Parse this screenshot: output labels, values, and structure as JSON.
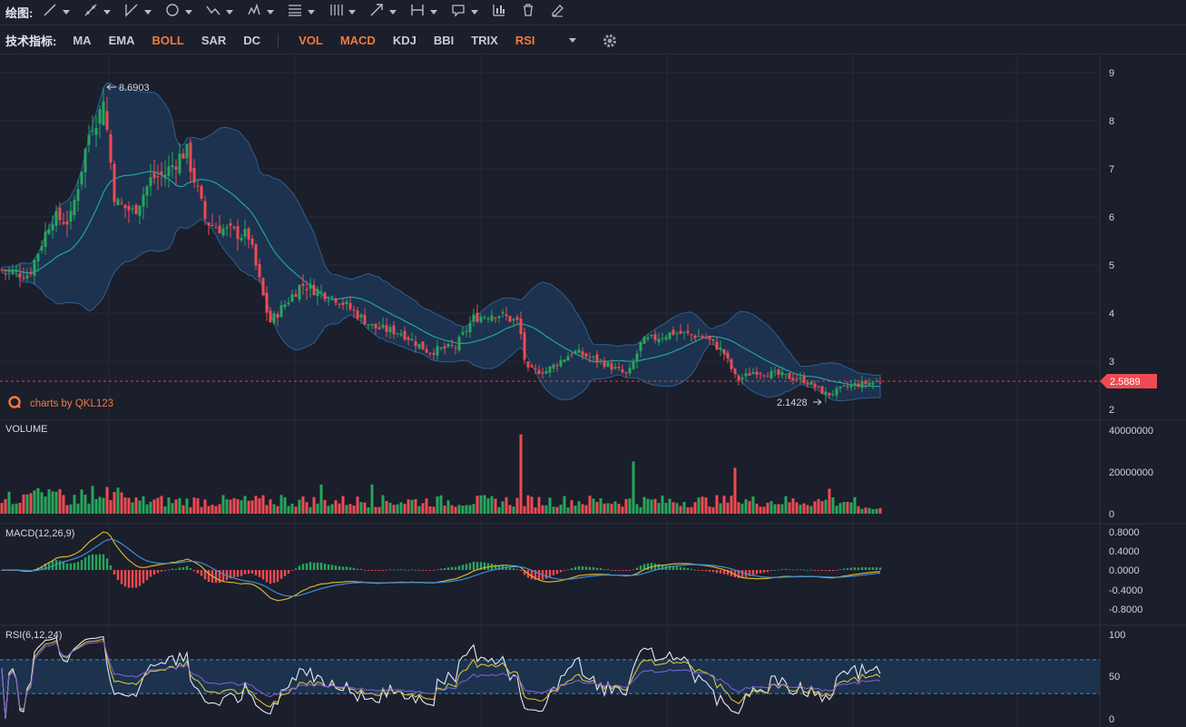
{
  "toolbar": {
    "draw_label": "绘图:",
    "tools": [
      {
        "name": "line-tool-icon",
        "dropdown": true
      },
      {
        "name": "ray-tool-icon",
        "dropdown": true
      },
      {
        "name": "channel-tool-icon",
        "dropdown": true
      },
      {
        "name": "circle-tool-icon",
        "dropdown": true
      },
      {
        "name": "wave-tool-icon",
        "dropdown": true
      },
      {
        "name": "pattern-tool-icon",
        "dropdown": true
      },
      {
        "name": "fibonacci-tool-icon",
        "dropdown": true
      },
      {
        "name": "gann-tool-icon",
        "dropdown": true
      },
      {
        "name": "arrow-tool-icon",
        "dropdown": true
      },
      {
        "name": "measure-tool-icon",
        "dropdown": true
      },
      {
        "name": "comment-tool-icon",
        "dropdown": true
      },
      {
        "name": "chart-type-icon",
        "dropdown": false
      },
      {
        "name": "trash-icon",
        "dropdown": false
      },
      {
        "name": "eraser-icon",
        "dropdown": false
      }
    ]
  },
  "indicators": {
    "label": "技术指标:",
    "main": [
      {
        "label": "MA",
        "active": false
      },
      {
        "label": "EMA",
        "active": false
      },
      {
        "label": "BOLL",
        "active": true
      },
      {
        "label": "SAR",
        "active": false
      },
      {
        "label": "DC",
        "active": false
      }
    ],
    "sub": [
      {
        "label": "VOL",
        "active": true
      },
      {
        "label": "MACD",
        "active": true
      },
      {
        "label": "KDJ",
        "active": false
      },
      {
        "label": "BBI",
        "active": false
      },
      {
        "label": "TRIX",
        "active": false
      },
      {
        "label": "RSI",
        "active": true
      }
    ]
  },
  "colors": {
    "up": "#26a65b",
    "down": "#ef4a52",
    "accent": "#f07b3f",
    "band_fill": "#1d3a5c",
    "band_edge": "#2f5f8e",
    "mid_line": "#1fa5a0",
    "macd_diff": "#d4b430",
    "macd_dea": "#3a8fd6",
    "rsi1": "#e8e8f0",
    "rsi2": "#d9c23a",
    "rsi3": "#7b5fd3"
  },
  "price": {
    "current": "2.5889",
    "high_label": "8.6903",
    "low_label": "2.1428",
    "watermark": "charts by QKL123",
    "axis": [
      "9",
      "8",
      "7",
      "6",
      "5",
      "4",
      "3",
      "2"
    ]
  },
  "volume": {
    "label": "VOLUME",
    "axis": [
      "40000000",
      "20000000",
      "0"
    ]
  },
  "macd": {
    "label": "MACD(12,26,9)",
    "axis": [
      "0.8000",
      "0.4000",
      "0.0000",
      "-0.4000",
      "-0.8000"
    ]
  },
  "rsi": {
    "label": "RSI(6,12,24)",
    "axis": [
      "100",
      "50",
      "0"
    ]
  },
  "chart_data": {
    "type": "candlestick",
    "indicators": [
      "BOLL",
      "VOL",
      "MACD",
      "RSI"
    ],
    "y_range": [
      2,
      9
    ],
    "keypoints": [
      {
        "t": 0,
        "p": 4.9
      },
      {
        "t": 30,
        "p": 4.8
      },
      {
        "t": 55,
        "p": 6.0
      },
      {
        "t": 75,
        "p": 5.9
      },
      {
        "t": 98,
        "p": 7.9
      },
      {
        "t": 113,
        "p": 8.3
      },
      {
        "t": 125,
        "p": 6.3
      },
      {
        "t": 145,
        "p": 6.1
      },
      {
        "t": 165,
        "p": 6.8
      },
      {
        "t": 180,
        "p": 6.9
      },
      {
        "t": 203,
        "p": 7.4
      },
      {
        "t": 225,
        "p": 5.9
      },
      {
        "t": 250,
        "p": 5.7
      },
      {
        "t": 272,
        "p": 5.6
      },
      {
        "t": 295,
        "p": 3.8
      },
      {
        "t": 330,
        "p": 4.6
      },
      {
        "t": 370,
        "p": 4.3
      },
      {
        "t": 410,
        "p": 3.7
      },
      {
        "t": 440,
        "p": 3.6
      },
      {
        "t": 470,
        "p": 3.2
      },
      {
        "t": 500,
        "p": 3.3
      },
      {
        "t": 520,
        "p": 3.9
      },
      {
        "t": 545,
        "p": 4.0
      },
      {
        "t": 570,
        "p": 3.8
      },
      {
        "t": 578,
        "p": 2.8
      },
      {
        "t": 600,
        "p": 2.8
      },
      {
        "t": 630,
        "p": 3.2
      },
      {
        "t": 660,
        "p": 3.0
      },
      {
        "t": 690,
        "p": 2.7
      },
      {
        "t": 705,
        "p": 3.4
      },
      {
        "t": 740,
        "p": 3.6
      },
      {
        "t": 775,
        "p": 3.5
      },
      {
        "t": 795,
        "p": 3.2
      },
      {
        "t": 810,
        "p": 2.6
      },
      {
        "t": 830,
        "p": 2.8
      },
      {
        "t": 860,
        "p": 2.7
      },
      {
        "t": 885,
        "p": 2.6
      },
      {
        "t": 910,
        "p": 2.3
      },
      {
        "t": 935,
        "p": 2.5
      },
      {
        "t": 972,
        "p": 2.59
      }
    ]
  }
}
